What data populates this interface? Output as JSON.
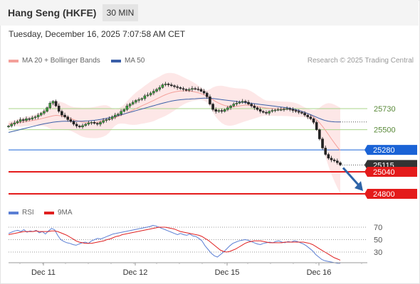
{
  "header": {
    "title": "Hang Seng (HKFE)",
    "timeframe": "30 MIN"
  },
  "datetime": "Tuesday, December 16, 2025 7:07:58 AM CET",
  "legend": {
    "bollinger": {
      "label": "MA 20 + Bollinger Bands",
      "color": "#f4a09a"
    },
    "ma50": {
      "label": "MA 50",
      "color": "#3a5fa8"
    },
    "credit": "Research © 2025 Trading Central"
  },
  "rsi_legend": {
    "rsi": {
      "label": "RSI",
      "color": "#5b7fd4"
    },
    "ma9": {
      "label": "9MA",
      "color": "#e02020"
    }
  },
  "chart_data": [
    {
      "type": "line",
      "title": "Hang Seng (HKFE)",
      "timeframe": "30 MIN",
      "ylim": [
        24750,
        26000
      ],
      "x_tick_labels": [
        "Dec 11",
        "Dec 12",
        "Dec 15",
        "Dec 16"
      ],
      "horizontal_levels": [
        {
          "value": 25730,
          "label": "25730",
          "style": "green-line"
        },
        {
          "value": 25500,
          "label": "25500",
          "style": "green-line"
        },
        {
          "value": 25280,
          "label": "25280",
          "style": "blue-tag"
        },
        {
          "value": 25115,
          "label": "25115",
          "style": "dark-tag"
        },
        {
          "value": 25040,
          "label": "25040",
          "style": "red-tag"
        },
        {
          "value": 24800,
          "label": "24800",
          "style": "red-tag"
        }
      ],
      "forecast_arrow": {
        "from": 25115,
        "to": 24800
      },
      "price_series": [
        25540,
        25560,
        25575,
        25590,
        25610,
        25600,
        25620,
        25615,
        25630,
        25640,
        25660,
        25680,
        25700,
        25740,
        25790,
        25810,
        25760,
        25700,
        25660,
        25640,
        25610,
        25590,
        25560,
        25540,
        25530,
        25545,
        25560,
        25575,
        25580,
        25570,
        25560,
        25580,
        25600,
        25610,
        25620,
        25640,
        25660,
        25670,
        25700,
        25720,
        25760,
        25780,
        25800,
        25820,
        25830,
        25840,
        25870,
        25880,
        25900,
        25920,
        25940,
        25960,
        25990,
        26000,
        25990,
        25980,
        25970,
        25960,
        25950,
        25940,
        25930,
        25940,
        25950,
        25945,
        25940,
        25920,
        25900,
        25860,
        25780,
        25720,
        25700,
        25710,
        25700,
        25720,
        25740,
        25760,
        25780,
        25790,
        25800,
        25810,
        25800,
        25780,
        25760,
        25740,
        25720,
        25700,
        25690,
        25680,
        25700,
        25710,
        25715,
        25720,
        25720,
        25725,
        25730,
        25720,
        25710,
        25700,
        25690,
        25680,
        25660,
        25640,
        25620,
        25580,
        25500,
        25400,
        25300,
        25230,
        25190,
        25170,
        25160,
        25140,
        25115
      ],
      "ma20_series": [
        25560,
        25565,
        25570,
        25575,
        25580,
        25585,
        25590,
        25595,
        25600,
        25605,
        25612,
        25620,
        25628,
        25636,
        25644,
        25652,
        25656,
        25655,
        25650,
        25642,
        25633,
        25622,
        25610,
        25600,
        25590,
        25582,
        25578,
        25576,
        25576,
        25578,
        25582,
        25588,
        25595,
        25603,
        25612,
        25622,
        25633,
        25645,
        25658,
        25670,
        25685,
        25700,
        25715,
        25730,
        25745,
        25760,
        25775,
        25790,
        25805,
        25820,
        25836,
        25852,
        25868,
        25882,
        25894,
        25904,
        25912,
        25918,
        25922,
        25924,
        25924,
        25922,
        25918,
        25912,
        25904,
        25894,
        25880,
        25864,
        25846,
        25826,
        25806,
        25790,
        25776,
        25764,
        25756,
        25752,
        25752,
        25755,
        25760,
        25765,
        25768,
        25768,
        25765,
        25760,
        25754,
        25748,
        25742,
        25737,
        25734,
        25732,
        25731,
        25730,
        25729,
        25728,
        25727,
        25724,
        25720,
        25715,
        25708,
        25700,
        25690,
        25677,
        25660,
        25638,
        25610,
        25576,
        25537,
        25493,
        25447,
        25401,
        25356,
        25313,
        25273
      ],
      "ma50_series": [
        25470,
        25478,
        25486,
        25494,
        25502,
        25510,
        25518,
        25526,
        25534,
        25542,
        25550,
        25557,
        25564,
        25570,
        25576,
        25582,
        25586,
        25589,
        25591,
        25592,
        25592,
        25592,
        25592,
        25592,
        25592,
        25593,
        25595,
        25597,
        25600,
        25603,
        25607,
        25612,
        25618,
        25624,
        25631,
        25638,
        25646,
        25654,
        25663,
        25672,
        25681,
        25690,
        25699,
        25708,
        25717,
        25726,
        25735,
        25744,
        25753,
        25762,
        25771,
        25780,
        25789,
        25797,
        25805,
        25812,
        25818,
        25823,
        25827,
        25830,
        25832,
        25834,
        25836,
        25838,
        25840,
        25842,
        25844,
        25844,
        25843,
        25840,
        25836,
        25832,
        25828,
        25824,
        25820,
        25816,
        25812,
        25808,
        25804,
        25800,
        25796,
        25792,
        25788,
        25784,
        25780,
        25776,
        25772,
        25768,
        25764,
        25760,
        25756,
        25752,
        25748,
        25744,
        25740,
        25734,
        25727,
        25719,
        25710,
        25700,
        25689,
        25677,
        25664,
        25650,
        25636,
        25622,
        25610,
        25600,
        25593,
        25588,
        25586,
        25585,
        25585
      ]
    },
    {
      "type": "line",
      "title": "RSI",
      "ylim": [
        10,
        80
      ],
      "y_tick_labels": [
        "70",
        "50",
        "30"
      ],
      "x_tick_labels": [
        "Dec 11",
        "Dec 12",
        "Dec 15",
        "Dec 16"
      ],
      "series": [
        {
          "name": "RSI",
          "values": [
            60,
            62,
            64,
            65,
            63,
            66,
            62,
            64,
            63,
            65,
            61,
            63,
            59,
            64,
            68,
            66,
            57,
            50,
            47,
            45,
            44,
            42,
            41,
            43,
            45,
            46,
            44,
            48,
            50,
            52,
            51,
            53,
            55,
            57,
            59,
            60,
            61,
            62,
            63,
            64,
            65,
            66,
            67,
            68,
            69,
            70,
            71,
            73,
            72,
            70,
            68,
            66,
            64,
            62,
            60,
            58,
            60,
            58,
            57,
            59,
            56,
            55,
            52,
            48,
            40,
            34,
            28,
            24,
            22,
            26,
            30,
            35,
            40,
            44,
            46,
            48,
            49,
            50,
            49,
            47,
            45,
            43,
            42,
            44,
            45,
            46,
            45,
            47,
            48,
            46,
            45,
            47,
            46,
            48,
            47,
            45,
            43,
            40,
            36,
            32,
            26,
            22,
            18,
            16,
            15,
            14,
            13,
            12,
            12
          ]
        },
        {
          "name": "9MA",
          "values": [
            58,
            59,
            60,
            61,
            62,
            63,
            63,
            63,
            63,
            64,
            63,
            63,
            63,
            63,
            64,
            64,
            63,
            61,
            59,
            57,
            54,
            51,
            48,
            46,
            45,
            44,
            44,
            44,
            45,
            46,
            47,
            48,
            50,
            51,
            53,
            55,
            56,
            58,
            59,
            60,
            61,
            62,
            63,
            64,
            65,
            66,
            67,
            68,
            69,
            70,
            70,
            70,
            69,
            68,
            67,
            65,
            63,
            62,
            61,
            60,
            59,
            58,
            57,
            55,
            52,
            49,
            45,
            41,
            37,
            33,
            31,
            30,
            31,
            33,
            35,
            38,
            41,
            44,
            46,
            47,
            48,
            48,
            48,
            47,
            46,
            45,
            45,
            45,
            45,
            45,
            46,
            46,
            46,
            46,
            46,
            46,
            46,
            45,
            44,
            42,
            39,
            36,
            33,
            30,
            27,
            24,
            21,
            19,
            17
          ]
        }
      ]
    }
  ]
}
